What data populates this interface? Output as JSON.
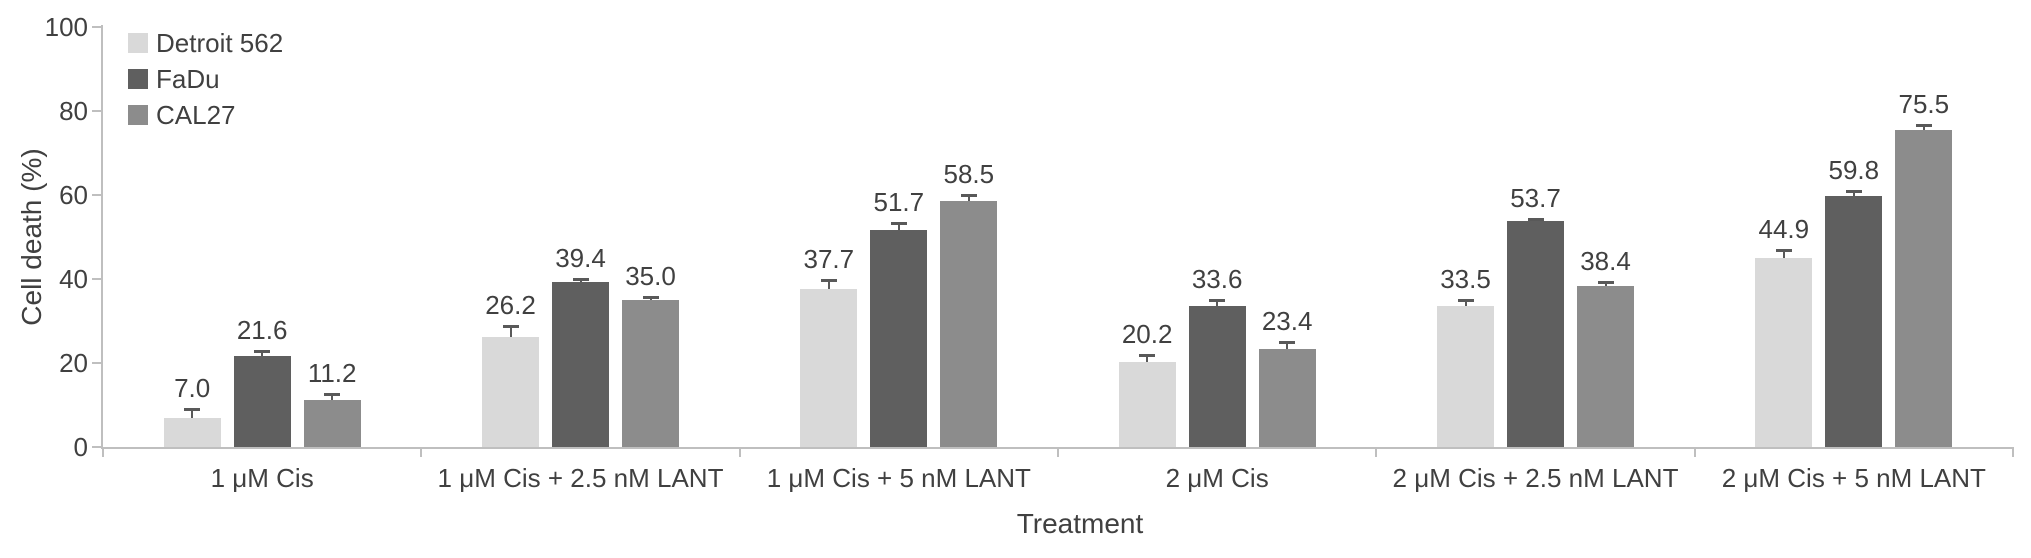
{
  "chart_data": {
    "type": "bar",
    "title": "",
    "xlabel": "Treatment",
    "ylabel": "Cell death (%)",
    "ylim": [
      0,
      100
    ],
    "yticks": [
      0,
      20,
      40,
      60,
      80,
      100
    ],
    "grid": false,
    "legend_position": "top-left",
    "value_labels": true,
    "error_bars": true,
    "categories": [
      "1 μM Cis",
      "1 μM Cis + 2.5 nM LANT",
      "1 μM Cis + 5 nM LANT",
      "2 μM Cis",
      "2 μM Cis + 2.5 nM LANT",
      "2 μM Cis + 5 nM LANT"
    ],
    "series": [
      {
        "name": "Detroit 562",
        "color": "#d9d9d9",
        "values": [
          7.0,
          26.2,
          37.7,
          20.2,
          33.5,
          44.9
        ],
        "errors": [
          2.0,
          2.6,
          2.0,
          1.6,
          1.6,
          2.1
        ]
      },
      {
        "name": "FaDu",
        "color": "#5f5f5f",
        "values": [
          21.6,
          39.4,
          51.7,
          33.6,
          53.7,
          59.8
        ],
        "errors": [
          1.3,
          0.6,
          1.6,
          1.4,
          0.5,
          1.2
        ]
      },
      {
        "name": "CAL27",
        "color": "#8c8c8c",
        "values": [
          11.2,
          35.0,
          58.5,
          23.4,
          38.4,
          75.5
        ],
        "errors": [
          1.4,
          0.8,
          1.6,
          1.6,
          1.0,
          1.2
        ]
      }
    ]
  },
  "colors": {
    "axis": "#bfbfbf",
    "text": "#404040",
    "error_bar": "#595959",
    "background": "#ffffff"
  }
}
